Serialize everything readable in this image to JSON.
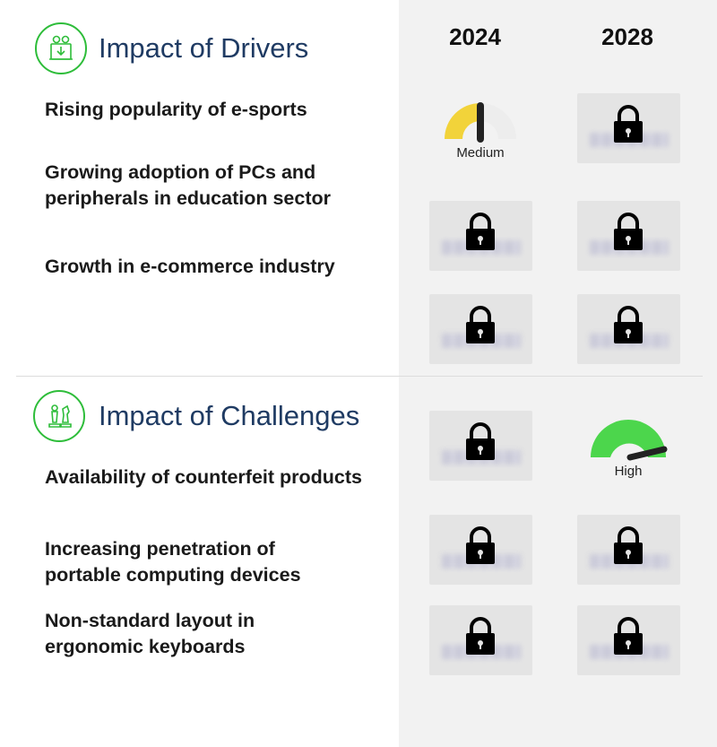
{
  "years": [
    "2024",
    "2028"
  ],
  "drivers": {
    "title": "Impact of Drivers",
    "items": [
      {
        "label": "Rising popularity of e-sports"
      },
      {
        "label": "Growing adoption of PCs and peripherals in education sector"
      },
      {
        "label": "Growth in e-commerce industry"
      }
    ],
    "gauge_2024_first": {
      "level": "Medium",
      "color": "#f2d33a"
    }
  },
  "challenges": {
    "title": "Impact of Challenges",
    "items": [
      {
        "label": "Availability of counterfeit products"
      },
      {
        "label": "Increasing penetration of portable computing devices"
      },
      {
        "label": "Non-standard layout in ergonomic keyboards"
      }
    ],
    "gauge_2028_first": {
      "level": "High",
      "color": "#4cd64c"
    }
  },
  "icons": {
    "drivers": "gears-icon",
    "challenges": "chess-icon",
    "locked": "lock-icon"
  }
}
